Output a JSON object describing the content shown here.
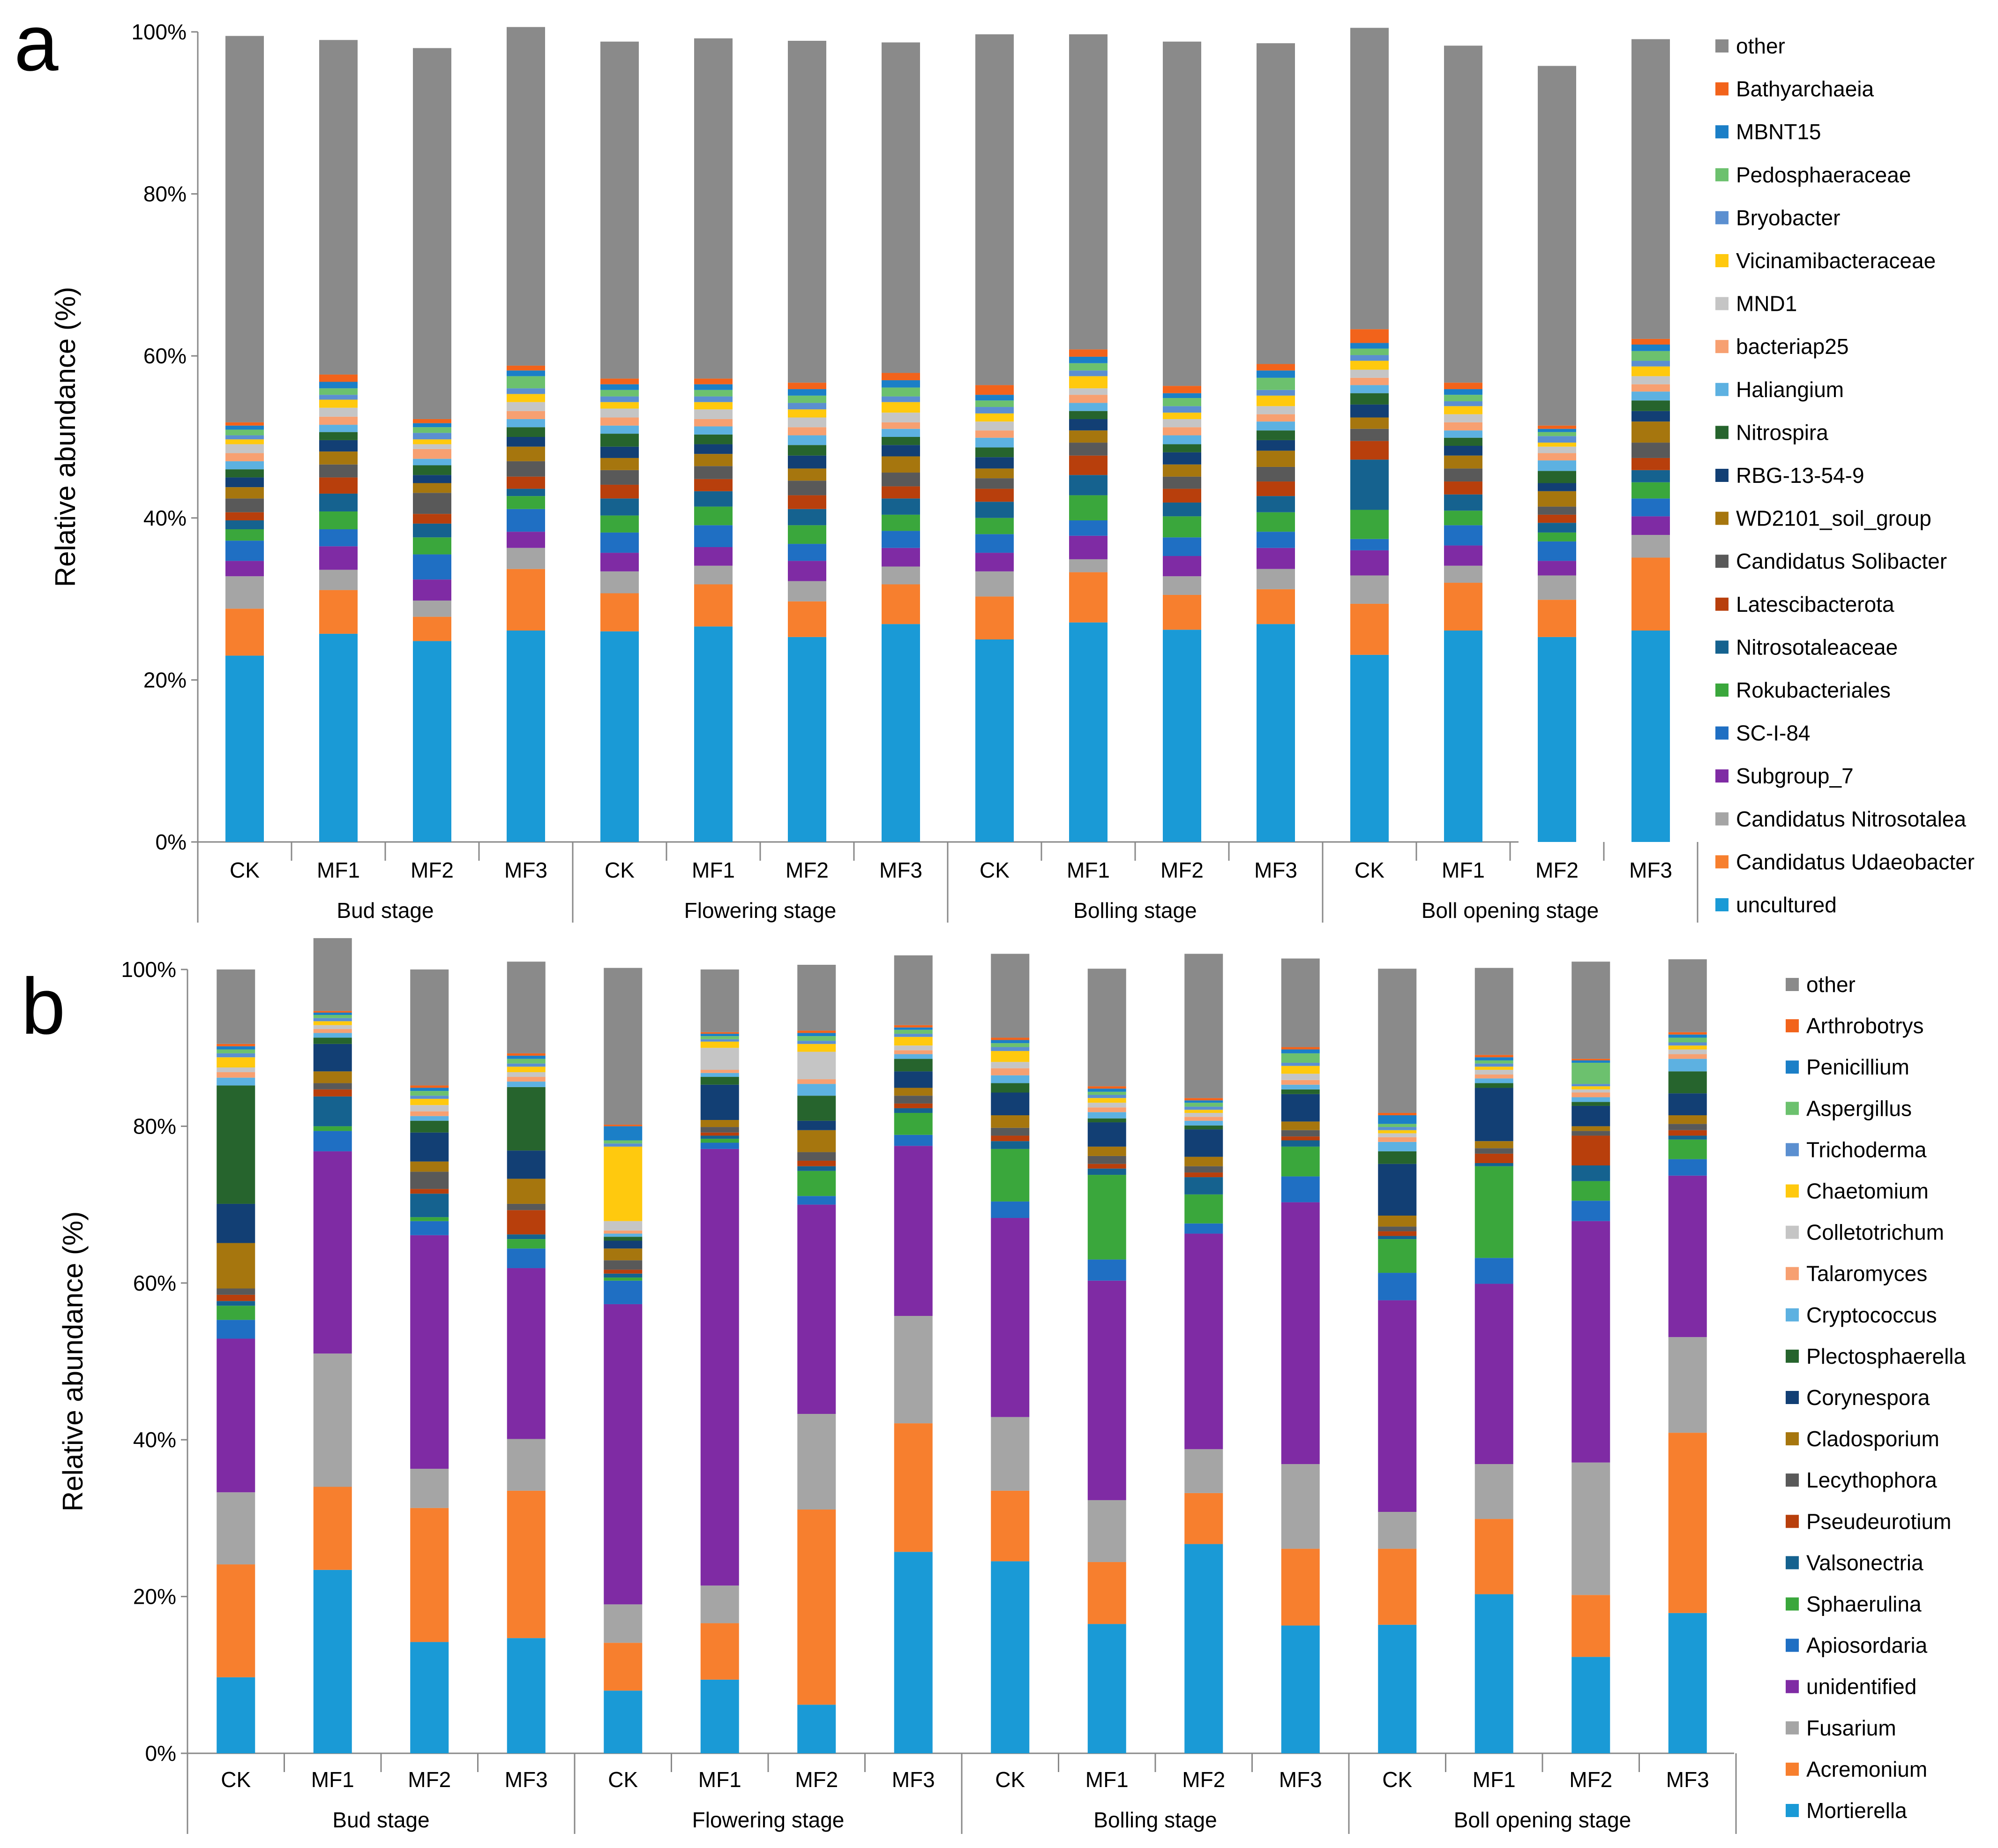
{
  "chart_data": [
    {
      "type": "bar",
      "stacked": true,
      "normalized": true,
      "panel_label": "a",
      "ylabel": "Relative abundance (%)",
      "ylim": [
        0,
        100
      ],
      "yticks": [
        "0%",
        "20%",
        "40%",
        "60%",
        "80%",
        "100%"
      ],
      "groups": [
        {
          "label": "Bud stage",
          "categories": [
            "CK",
            "MF1",
            "MF2",
            "MF3"
          ]
        },
        {
          "label": "Flowering stage",
          "categories": [
            "CK",
            "MF1",
            "MF2",
            "MF3"
          ]
        },
        {
          "label": "Bolling stage",
          "categories": [
            "CK",
            "MF1",
            "MF2",
            "MF3"
          ]
        },
        {
          "label": "Boll opening stage",
          "categories": [
            "CK",
            "MF1",
            "MF2",
            "MF3"
          ]
        }
      ],
      "series": [
        {
          "name": "uncultured",
          "color": "#1a9ad6",
          "values": [
            23.0,
            25.7,
            24.8,
            26.1,
            26.0,
            26.6,
            25.3,
            26.9,
            25.0,
            27.1,
            26.2,
            26.9,
            23.1,
            26.1,
            25.3,
            26.1
          ]
        },
        {
          "name": "Candidatus Udaeobacter",
          "color": "#f77f2e",
          "values": [
            5.8,
            5.4,
            3.0,
            7.6,
            4.7,
            5.2,
            4.4,
            4.9,
            5.3,
            6.2,
            4.3,
            4.3,
            6.3,
            5.9,
            4.6,
            9.0
          ]
        },
        {
          "name": "Candidatus Nitrosotalea",
          "color": "#a5a5a5",
          "values": [
            4.0,
            2.5,
            2.0,
            2.6,
            2.7,
            2.3,
            2.5,
            2.2,
            3.1,
            1.6,
            2.3,
            2.5,
            3.5,
            2.1,
            3.0,
            2.8
          ]
        },
        {
          "name": "Subgroup_7",
          "color": "#7f2ba4",
          "values": [
            1.9,
            2.9,
            2.6,
            2.0,
            2.3,
            2.3,
            2.5,
            2.3,
            2.3,
            2.9,
            2.5,
            2.6,
            3.1,
            2.5,
            1.8,
            2.3
          ]
        },
        {
          "name": "SC-I-84",
          "color": "#1f6fc3",
          "values": [
            2.5,
            2.1,
            3.1,
            2.8,
            2.5,
            2.7,
            2.1,
            2.1,
            2.3,
            1.9,
            2.3,
            2.0,
            1.4,
            2.5,
            2.4,
            2.2
          ]
        },
        {
          "name": "Rokubacteriales",
          "color": "#3aa73c",
          "values": [
            1.4,
            2.2,
            2.1,
            1.6,
            2.1,
            2.3,
            2.3,
            2.0,
            2.0,
            3.1,
            2.6,
            2.4,
            3.6,
            1.8,
            1.1,
            2.0
          ]
        },
        {
          "name": "Nitrosotaleaceae",
          "color": "#15628f",
          "values": [
            1.1,
            2.2,
            1.7,
            0.9,
            2.1,
            1.9,
            2.0,
            2.0,
            2.0,
            2.5,
            1.7,
            2.0,
            6.2,
            2.0,
            1.2,
            1.5
          ]
        },
        {
          "name": "Latescibacterota",
          "color": "#b83f0c",
          "values": [
            1.0,
            2.0,
            1.2,
            1.5,
            1.7,
            1.5,
            1.7,
            1.5,
            1.6,
            2.4,
            1.7,
            1.8,
            2.3,
            1.6,
            1.0,
            1.5
          ]
        },
        {
          "name": "Candidatus Solibacter",
          "color": "#595959",
          "values": [
            1.7,
            1.6,
            2.6,
            1.9,
            1.8,
            1.6,
            1.8,
            1.7,
            1.3,
            1.6,
            1.5,
            1.8,
            1.5,
            1.6,
            1.0,
            1.9
          ]
        },
        {
          "name": "WD2101_soil_group",
          "color": "#a6760e",
          "values": [
            1.4,
            1.6,
            1.2,
            1.8,
            1.5,
            1.5,
            1.5,
            2.0,
            1.2,
            1.5,
            1.5,
            2.0,
            1.4,
            1.6,
            1.9,
            2.6
          ]
        },
        {
          "name": "RBG-13-54-9",
          "color": "#123f74",
          "values": [
            1.2,
            1.4,
            1.0,
            1.2,
            1.4,
            1.2,
            1.6,
            1.4,
            1.4,
            1.4,
            1.5,
            1.3,
            1.6,
            1.2,
            1.0,
            1.3
          ]
        },
        {
          "name": "Nitrospira",
          "color": "#26642d",
          "values": [
            1.0,
            1.0,
            1.2,
            1.2,
            1.6,
            1.2,
            1.3,
            1.0,
            1.2,
            1.0,
            1.0,
            1.2,
            1.4,
            1.0,
            1.5,
            1.3
          ]
        },
        {
          "name": "Haliangium",
          "color": "#5db1e1",
          "values": [
            1.0,
            0.9,
            0.8,
            1.0,
            1.0,
            1.0,
            1.2,
            1.0,
            1.2,
            1.0,
            1.1,
            1.1,
            1.0,
            0.9,
            1.3,
            1.1
          ]
        },
        {
          "name": "bacteriap25",
          "color": "#f7a071",
          "values": [
            1.0,
            1.0,
            1.2,
            1.0,
            1.0,
            0.9,
            1.0,
            0.8,
            0.9,
            1.0,
            1.0,
            0.9,
            0.9,
            1.0,
            0.9,
            0.9
          ]
        },
        {
          "name": "MND1",
          "color": "#c5c5c5",
          "values": [
            1.1,
            1.1,
            0.6,
            1.1,
            1.1,
            1.2,
            1.2,
            1.2,
            1.1,
            0.8,
            1.0,
            1.0,
            1.0,
            1.0,
            0.8,
            1.0
          ]
        },
        {
          "name": "Vicinamibacteraceae",
          "color": "#ffc90e",
          "values": [
            0.6,
            1.0,
            0.6,
            1.0,
            0.8,
            0.9,
            1.0,
            1.3,
            1.0,
            1.5,
            0.8,
            1.3,
            1.1,
            1.0,
            0.5,
            1.2
          ]
        },
        {
          "name": "Bryobacter",
          "color": "#5b8fd0",
          "values": [
            0.5,
            0.6,
            0.8,
            0.7,
            0.7,
            0.7,
            0.8,
            0.7,
            0.8,
            0.7,
            0.8,
            0.7,
            0.7,
            0.6,
            0.8,
            0.7
          ]
        },
        {
          "name": "Pedosphaeraceae",
          "color": "#6cc16e",
          "values": [
            0.7,
            0.8,
            0.7,
            1.5,
            0.8,
            0.8,
            0.9,
            1.1,
            0.8,
            0.9,
            1.0,
            1.5,
            0.8,
            0.8,
            0.5,
            1.2
          ]
        },
        {
          "name": "MBNT15",
          "color": "#1b7fc7",
          "values": [
            0.5,
            0.8,
            0.5,
            0.7,
            0.7,
            0.7,
            0.8,
            0.9,
            0.7,
            0.8,
            0.6,
            0.9,
            0.7,
            0.7,
            0.4,
            0.8
          ]
        },
        {
          "name": "Bathyarchaeia",
          "color": "#f2631b",
          "values": [
            0.4,
            0.9,
            0.5,
            0.6,
            0.7,
            0.7,
            0.8,
            0.9,
            1.2,
            0.9,
            0.9,
            0.8,
            1.7,
            0.8,
            0.4,
            0.7
          ]
        },
        {
          "name": "other",
          "color": "#8a8a8a",
          "values": [
            47.7,
            41.3,
            45.8,
            41.8,
            41.6,
            42.0,
            42.2,
            40.8,
            43.3,
            38.9,
            42.5,
            39.6,
            37.2,
            41.6,
            44.4,
            37.0
          ]
        }
      ]
    },
    {
      "type": "bar",
      "stacked": true,
      "normalized": true,
      "panel_label": "b",
      "ylabel": "Relative abundance (%)",
      "ylim": [
        0,
        100
      ],
      "yticks": [
        "0%",
        "20%",
        "40%",
        "60%",
        "80%",
        "100%"
      ],
      "groups": [
        {
          "label": "Bud stage",
          "categories": [
            "CK",
            "MF1",
            "MF2",
            "MF3"
          ]
        },
        {
          "label": "Flowering stage",
          "categories": [
            "CK",
            "MF1",
            "MF2",
            "MF3"
          ]
        },
        {
          "label": "Bolling stage",
          "categories": [
            "CK",
            "MF1",
            "MF2",
            "MF3"
          ]
        },
        {
          "label": "Boll opening stage",
          "categories": [
            "CK",
            "MF1",
            "MF2",
            "MF3"
          ]
        }
      ],
      "series": [
        {
          "name": "Mortierella",
          "color": "#1a9ad6",
          "values": [
            9.7,
            23.4,
            14.2,
            14.7,
            8.0,
            9.4,
            6.2,
            25.7,
            24.5,
            16.5,
            26.7,
            16.3,
            16.4,
            20.3,
            12.3,
            17.9
          ]
        },
        {
          "name": "Acremonium",
          "color": "#f77f2e",
          "values": [
            14.4,
            10.6,
            17.1,
            18.8,
            6.1,
            7.2,
            24.9,
            16.4,
            9.0,
            7.9,
            6.5,
            9.8,
            9.7,
            9.6,
            7.9,
            23.0
          ]
        },
        {
          "name": "Fusarium",
          "color": "#a5a5a5",
          "values": [
            9.2,
            17.0,
            5.0,
            6.6,
            4.9,
            4.8,
            12.2,
            13.7,
            9.4,
            7.9,
            5.6,
            10.8,
            4.7,
            7.0,
            16.9,
            12.2
          ]
        },
        {
          "name": "unidentified",
          "color": "#7f2ba4",
          "values": [
            19.6,
            25.8,
            29.8,
            21.8,
            38.3,
            55.7,
            26.7,
            21.7,
            25.4,
            28.0,
            27.5,
            33.4,
            27.0,
            23.0,
            30.8,
            20.6
          ]
        },
        {
          "name": "Apiosordaria",
          "color": "#1f6fc3",
          "values": [
            2.4,
            2.6,
            1.8,
            2.5,
            3.0,
            0.8,
            1.1,
            1.4,
            2.1,
            2.7,
            1.3,
            3.3,
            3.5,
            3.3,
            2.6,
            2.1
          ]
        },
        {
          "name": "Sphaerulina",
          "color": "#3aa73c",
          "values": [
            1.8,
            0.6,
            0.5,
            1.2,
            0.4,
            0.5,
            3.2,
            2.8,
            6.7,
            10.8,
            3.7,
            3.8,
            4.3,
            11.7,
            2.5,
            2.5
          ]
        },
        {
          "name": "Valsonectria",
          "color": "#15628f",
          "values": [
            0.6,
            3.8,
            3.0,
            0.6,
            0.5,
            0.4,
            0.6,
            0.6,
            1.0,
            0.8,
            2.2,
            0.8,
            0.4,
            0.4,
            2.0,
            0.5
          ]
        },
        {
          "name": "Pseudeurotium",
          "color": "#b83f0c",
          "values": [
            0.8,
            0.9,
            0.6,
            3.1,
            0.5,
            0.4,
            0.7,
            0.6,
            0.7,
            0.6,
            0.6,
            0.5,
            0.6,
            1.2,
            3.8,
            0.7
          ]
        },
        {
          "name": "Lecythophora",
          "color": "#595959",
          "values": [
            0.8,
            0.8,
            2.2,
            0.8,
            1.2,
            0.7,
            1.1,
            1.0,
            1.0,
            1.0,
            0.8,
            0.8,
            0.6,
            0.7,
            0.6,
            0.8
          ]
        },
        {
          "name": "Cladosporium",
          "color": "#a6760e",
          "values": [
            5.8,
            1.5,
            1.3,
            3.2,
            1.5,
            0.9,
            2.8,
            1.0,
            1.6,
            1.2,
            1.2,
            1.1,
            1.4,
            0.9,
            0.6,
            1.1
          ]
        },
        {
          "name": "Corynespora",
          "color": "#123f74",
          "values": [
            5.0,
            3.5,
            3.7,
            3.6,
            1.0,
            4.5,
            1.2,
            2.1,
            2.9,
            3.1,
            3.5,
            3.5,
            6.6,
            6.8,
            2.6,
            2.8
          ]
        },
        {
          "name": "Plectosphaerella",
          "color": "#26642d",
          "values": [
            15.1,
            0.8,
            1.5,
            8.1,
            0.5,
            1.0,
            3.2,
            1.6,
            1.2,
            0.5,
            0.5,
            0.6,
            1.6,
            0.6,
            0.5,
            2.8
          ]
        },
        {
          "name": "Cryptococcus",
          "color": "#5db1e1",
          "values": [
            1.0,
            0.6,
            0.6,
            0.7,
            0.4,
            0.5,
            1.5,
            0.6,
            1.0,
            0.8,
            0.6,
            0.6,
            1.2,
            0.6,
            0.6,
            1.6
          ]
        },
        {
          "name": "Talaromyces",
          "color": "#f7a071",
          "values": [
            0.7,
            0.5,
            0.6,
            0.6,
            0.4,
            0.4,
            0.6,
            0.5,
            0.9,
            0.6,
            0.5,
            0.6,
            0.6,
            0.5,
            0.6,
            0.6
          ]
        },
        {
          "name": "Colletotrichum",
          "color": "#c5c5c5",
          "values": [
            0.6,
            0.5,
            0.8,
            0.6,
            1.2,
            2.8,
            3.5,
            0.6,
            0.8,
            0.6,
            0.5,
            0.8,
            0.5,
            0.6,
            0.4,
            0.6
          ]
        },
        {
          "name": "Chaetomium",
          "color": "#ffc90e",
          "values": [
            1.3,
            0.5,
            0.8,
            0.7,
            9.5,
            0.8,
            1.0,
            1.1,
            1.4,
            0.6,
            0.4,
            1.0,
            0.4,
            0.4,
            0.4,
            0.5
          ]
        },
        {
          "name": "Trichoderma",
          "color": "#5b8fd0",
          "values": [
            0.5,
            0.4,
            0.4,
            0.4,
            0.4,
            0.3,
            0.4,
            0.4,
            0.5,
            0.4,
            0.4,
            0.4,
            0.4,
            0.4,
            0.3,
            0.4
          ]
        },
        {
          "name": "Aspergillus",
          "color": "#6cc16e",
          "values": [
            0.5,
            0.4,
            0.6,
            0.6,
            0.4,
            0.4,
            0.6,
            0.5,
            0.5,
            0.4,
            0.5,
            1.2,
            0.4,
            0.4,
            2.7,
            0.6
          ]
        },
        {
          "name": "Penicillium",
          "color": "#1b7fc7",
          "values": [
            0.4,
            0.3,
            0.4,
            0.4,
            1.8,
            0.3,
            0.4,
            0.3,
            0.4,
            0.4,
            0.3,
            0.5,
            1.1,
            0.4,
            0.3,
            0.4
          ]
        },
        {
          "name": "Arthrobotrys",
          "color": "#f2631b",
          "values": [
            0.3,
            0.2,
            0.3,
            0.3,
            0.2,
            0.2,
            0.3,
            0.3,
            0.3,
            0.3,
            0.3,
            0.3,
            0.3,
            0.3,
            0.2,
            0.3
          ]
        },
        {
          "name": "other",
          "color": "#8a8a8a",
          "values": [
            9.5,
            9.3,
            14.8,
            11.7,
            20.0,
            8.0,
            8.4,
            8.9,
            10.7,
            15.0,
            18.4,
            11.3,
            18.4,
            11.1,
            12.4,
            9.3
          ]
        }
      ]
    }
  ]
}
